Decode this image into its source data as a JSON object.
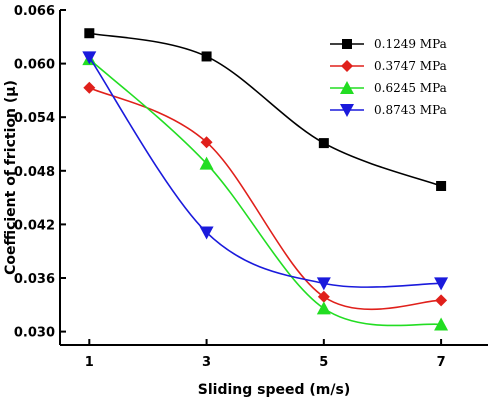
{
  "chart_data": {
    "type": "line",
    "title": "",
    "xlabel": "Sliding speed (m/s)",
    "ylabel": "Coefficient of friction (μ)",
    "x": [
      1,
      3,
      5,
      7
    ],
    "xticks": [
      "1",
      "3",
      "5",
      "7"
    ],
    "xlim": [
      0.5,
      7.8
    ],
    "yticks": [
      "0.030",
      "0.036",
      "0.042",
      "0.048",
      "0.054",
      "0.060",
      "0.066"
    ],
    "ylim": [
      0.0285,
      0.066
    ],
    "legend_position": "top-right",
    "grid": false,
    "series": [
      {
        "name": "0.1249 MPa",
        "values": [
          0.0634,
          0.0608,
          0.0511,
          0.0463
        ],
        "color": "#000000",
        "marker": "square"
      },
      {
        "name": "0.3747 MPa",
        "values": [
          0.0573,
          0.0512,
          0.0339,
          0.0335
        ],
        "color": "#e0201b",
        "marker": "diamond"
      },
      {
        "name": "0.6245 MPa",
        "values": [
          0.0605,
          0.0488,
          0.0326,
          0.0308
        ],
        "color": "#22dd22",
        "marker": "triangle-up"
      },
      {
        "name": "0.8743 MPa",
        "values": [
          0.0607,
          0.0411,
          0.0354,
          0.0354
        ],
        "color": "#1a1adc",
        "marker": "triangle-down"
      }
    ]
  }
}
